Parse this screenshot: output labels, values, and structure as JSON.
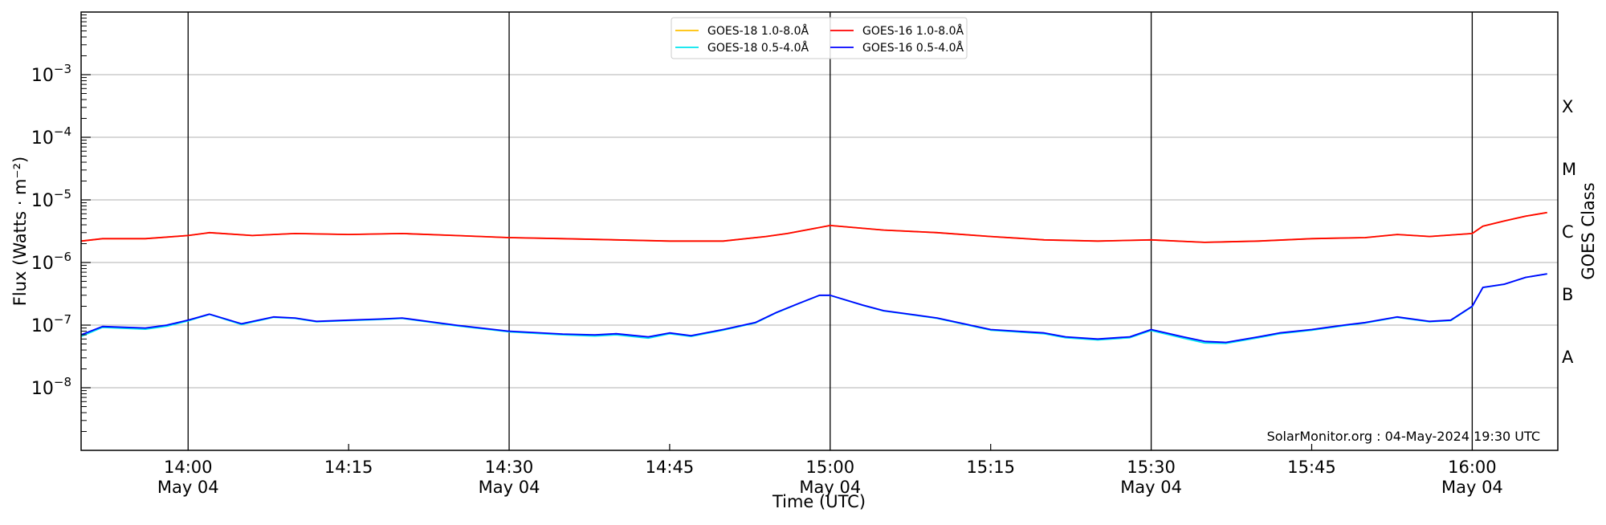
{
  "chart_data": {
    "type": "line",
    "xlabel": "Time (UTC)",
    "ylabel": "Flux (Watts · m⁻²)",
    "right_axis_label": "GOES Class",
    "yscale": "log",
    "ylim": [
      1e-09,
      0.01
    ],
    "xlim": [
      "13:50",
      "16:08"
    ],
    "grid": true,
    "legend_placement": "top-center",
    "y_ticks": [
      {
        "value": 1e-08,
        "label": "10",
        "exp": "−8"
      },
      {
        "value": 1e-07,
        "label": "10",
        "exp": "−7"
      },
      {
        "value": 1e-06,
        "label": "10",
        "exp": "−6"
      },
      {
        "value": 1e-05,
        "label": "10",
        "exp": "−5"
      },
      {
        "value": 0.0001,
        "label": "10",
        "exp": "−4"
      },
      {
        "value": 0.001,
        "label": "10",
        "exp": "−3"
      }
    ],
    "x_ticks": [
      {
        "time": "14:00",
        "label": "14:00",
        "sub": "May 04",
        "vline": true
      },
      {
        "time": "14:15",
        "label": "14:15",
        "sub": "",
        "vline": false
      },
      {
        "time": "14:30",
        "label": "14:30",
        "sub": "May 04",
        "vline": true
      },
      {
        "time": "14:45",
        "label": "14:45",
        "sub": "",
        "vline": false
      },
      {
        "time": "15:00",
        "label": "15:00",
        "sub": "May 04",
        "vline": true
      },
      {
        "time": "15:15",
        "label": "15:15",
        "sub": "",
        "vline": false
      },
      {
        "time": "15:30",
        "label": "15:30",
        "sub": "May 04",
        "vline": true
      },
      {
        "time": "15:45",
        "label": "15:45",
        "sub": "",
        "vline": false
      },
      {
        "time": "16:00",
        "label": "16:00",
        "sub": "May 04",
        "vline": true
      }
    ],
    "goes_classes": [
      {
        "label": "X",
        "value": 0.000316
      },
      {
        "label": "M",
        "value": 3.16e-05
      },
      {
        "label": "C",
        "value": 3.16e-06
      },
      {
        "label": "B",
        "value": 3.16e-07
      },
      {
        "label": "A",
        "value": 3.16e-08
      }
    ],
    "series": [
      {
        "name": "GOES-18 1.0-8.0Å",
        "color": "#ffc000",
        "x": [
          "13:50",
          "13:52",
          "13:56",
          "14:00",
          "14:02",
          "14:06",
          "14:10",
          "14:15",
          "14:20",
          "14:25",
          "14:30",
          "14:35",
          "14:40",
          "14:45",
          "14:50",
          "14:54",
          "14:56",
          "15:00",
          "15:05",
          "15:10",
          "15:15",
          "15:20",
          "15:25",
          "15:30",
          "15:35",
          "15:40",
          "15:45",
          "15:50",
          "15:53",
          "15:56",
          "16:00",
          "16:01",
          "16:03",
          "16:05",
          "16:07"
        ],
        "y": [
          2.2e-06,
          2.4e-06,
          2.4e-06,
          2.7e-06,
          3e-06,
          2.7e-06,
          2.9e-06,
          2.8e-06,
          2.9e-06,
          2.7e-06,
          2.5e-06,
          2.4e-06,
          2.3e-06,
          2.2e-06,
          2.2e-06,
          2.6e-06,
          2.9e-06,
          3.9e-06,
          3.3e-06,
          3e-06,
          2.6e-06,
          2.3e-06,
          2.2e-06,
          2.3e-06,
          2.1e-06,
          2.2e-06,
          2.4e-06,
          2.5e-06,
          2.8e-06,
          2.6e-06,
          2.9e-06,
          3.8e-06,
          4.6e-06,
          5.5e-06,
          6.3e-06
        ]
      },
      {
        "name": "GOES-18 0.5-4.0Å",
        "color": "#00e5ee",
        "x": [
          "13:50",
          "13:52",
          "13:56",
          "13:58",
          "14:00",
          "14:02",
          "14:05",
          "14:08",
          "14:10",
          "14:12",
          "14:15",
          "14:18",
          "14:20",
          "14:25",
          "14:30",
          "14:35",
          "14:38",
          "14:40",
          "14:43",
          "14:45",
          "14:47",
          "14:50",
          "14:53",
          "14:55",
          "14:57",
          "14:59",
          "15:00",
          "15:03",
          "15:05",
          "15:08",
          "15:10",
          "15:15",
          "15:20",
          "15:22",
          "15:25",
          "15:28",
          "15:30",
          "15:33",
          "15:35",
          "15:37",
          "15:40",
          "15:42",
          "15:45",
          "15:48",
          "15:50",
          "15:53",
          "15:56",
          "15:58",
          "16:00",
          "16:01",
          "16:03",
          "16:05",
          "16:07"
        ],
        "y": [
          6.6e-08,
          9.2e-08,
          8.6e-08,
          9.6e-08,
          1.17e-07,
          1.48e-07,
          1.02e-07,
          1.33e-07,
          1.28e-07,
          1.13e-07,
          1.18e-07,
          1.23e-07,
          1.28e-07,
          9.8e-08,
          7.8e-08,
          7e-08,
          6.7e-08,
          7e-08,
          6.2e-08,
          7.3e-08,
          6.6e-08,
          8.3e-08,
          1.08e-07,
          1.58e-07,
          2.18e-07,
          2.98e-07,
          2.98e-07,
          2.08e-07,
          1.68e-07,
          1.43e-07,
          1.28e-07,
          8.3e-08,
          7.3e-08,
          6.3e-08,
          5.8e-08,
          6.3e-08,
          8.2e-08,
          6.2e-08,
          5.2e-08,
          5.1e-08,
          6.3e-08,
          7.3e-08,
          8.3e-08,
          9.8e-08,
          1.08e-07,
          1.33e-07,
          1.13e-07,
          1.18e-07,
          1.98e-07,
          3.98e-07,
          4.48e-07,
          5.78e-07,
          6.58e-07
        ]
      },
      {
        "name": "GOES-16 1.0-8.0Å",
        "color": "#ff0000",
        "x": [
          "13:50",
          "13:52",
          "13:56",
          "14:00",
          "14:02",
          "14:06",
          "14:10",
          "14:15",
          "14:20",
          "14:25",
          "14:30",
          "14:35",
          "14:40",
          "14:45",
          "14:50",
          "14:54",
          "14:56",
          "15:00",
          "15:05",
          "15:10",
          "15:15",
          "15:20",
          "15:25",
          "15:30",
          "15:35",
          "15:40",
          "15:45",
          "15:50",
          "15:53",
          "15:56",
          "16:00",
          "16:01",
          "16:03",
          "16:05",
          "16:07"
        ],
        "y": [
          2.2e-06,
          2.4e-06,
          2.4e-06,
          2.7e-06,
          3e-06,
          2.7e-06,
          2.9e-06,
          2.8e-06,
          2.9e-06,
          2.7e-06,
          2.5e-06,
          2.4e-06,
          2.3e-06,
          2.2e-06,
          2.2e-06,
          2.6e-06,
          2.9e-06,
          3.9e-06,
          3.3e-06,
          3e-06,
          2.6e-06,
          2.3e-06,
          2.2e-06,
          2.3e-06,
          2.1e-06,
          2.2e-06,
          2.4e-06,
          2.5e-06,
          2.8e-06,
          2.6e-06,
          2.9e-06,
          3.8e-06,
          4.6e-06,
          5.5e-06,
          6.3e-06
        ]
      },
      {
        "name": "GOES-16 0.5-4.0Å",
        "color": "#0000ff",
        "x": [
          "13:50",
          "13:52",
          "13:56",
          "13:58",
          "14:00",
          "14:02",
          "14:05",
          "14:08",
          "14:10",
          "14:12",
          "14:15",
          "14:18",
          "14:20",
          "14:25",
          "14:30",
          "14:35",
          "14:38",
          "14:40",
          "14:43",
          "14:45",
          "14:47",
          "14:50",
          "14:53",
          "14:55",
          "14:57",
          "14:59",
          "15:00",
          "15:03",
          "15:05",
          "15:08",
          "15:10",
          "15:15",
          "15:20",
          "15:22",
          "15:25",
          "15:28",
          "15:30",
          "15:33",
          "15:35",
          "15:37",
          "15:40",
          "15:42",
          "15:45",
          "15:48",
          "15:50",
          "15:53",
          "15:56",
          "15:58",
          "16:00",
          "16:01",
          "16:03",
          "16:05",
          "16:07"
        ],
        "y": [
          7e-08,
          9.5e-08,
          9e-08,
          1e-07,
          1.2e-07,
          1.5e-07,
          1.05e-07,
          1.35e-07,
          1.3e-07,
          1.15e-07,
          1.2e-07,
          1.25e-07,
          1.3e-07,
          1e-07,
          8e-08,
          7.2e-08,
          7e-08,
          7.3e-08,
          6.5e-08,
          7.5e-08,
          6.8e-08,
          8.5e-08,
          1.1e-07,
          1.6e-07,
          2.2e-07,
          3e-07,
          3e-07,
          2.1e-07,
          1.7e-07,
          1.45e-07,
          1.3e-07,
          8.5e-08,
          7.5e-08,
          6.5e-08,
          6e-08,
          6.5e-08,
          8.5e-08,
          6.5e-08,
          5.5e-08,
          5.3e-08,
          6.5e-08,
          7.5e-08,
          8.5e-08,
          1e-07,
          1.1e-07,
          1.35e-07,
          1.15e-07,
          1.2e-07,
          2e-07,
          4e-07,
          4.5e-07,
          5.8e-07,
          6.6e-07
        ]
      }
    ],
    "legend_order": [
      0,
      1,
      2,
      3
    ],
    "annotation": "SolarMonitor.org : 04-May-2024 19:30 UTC"
  }
}
